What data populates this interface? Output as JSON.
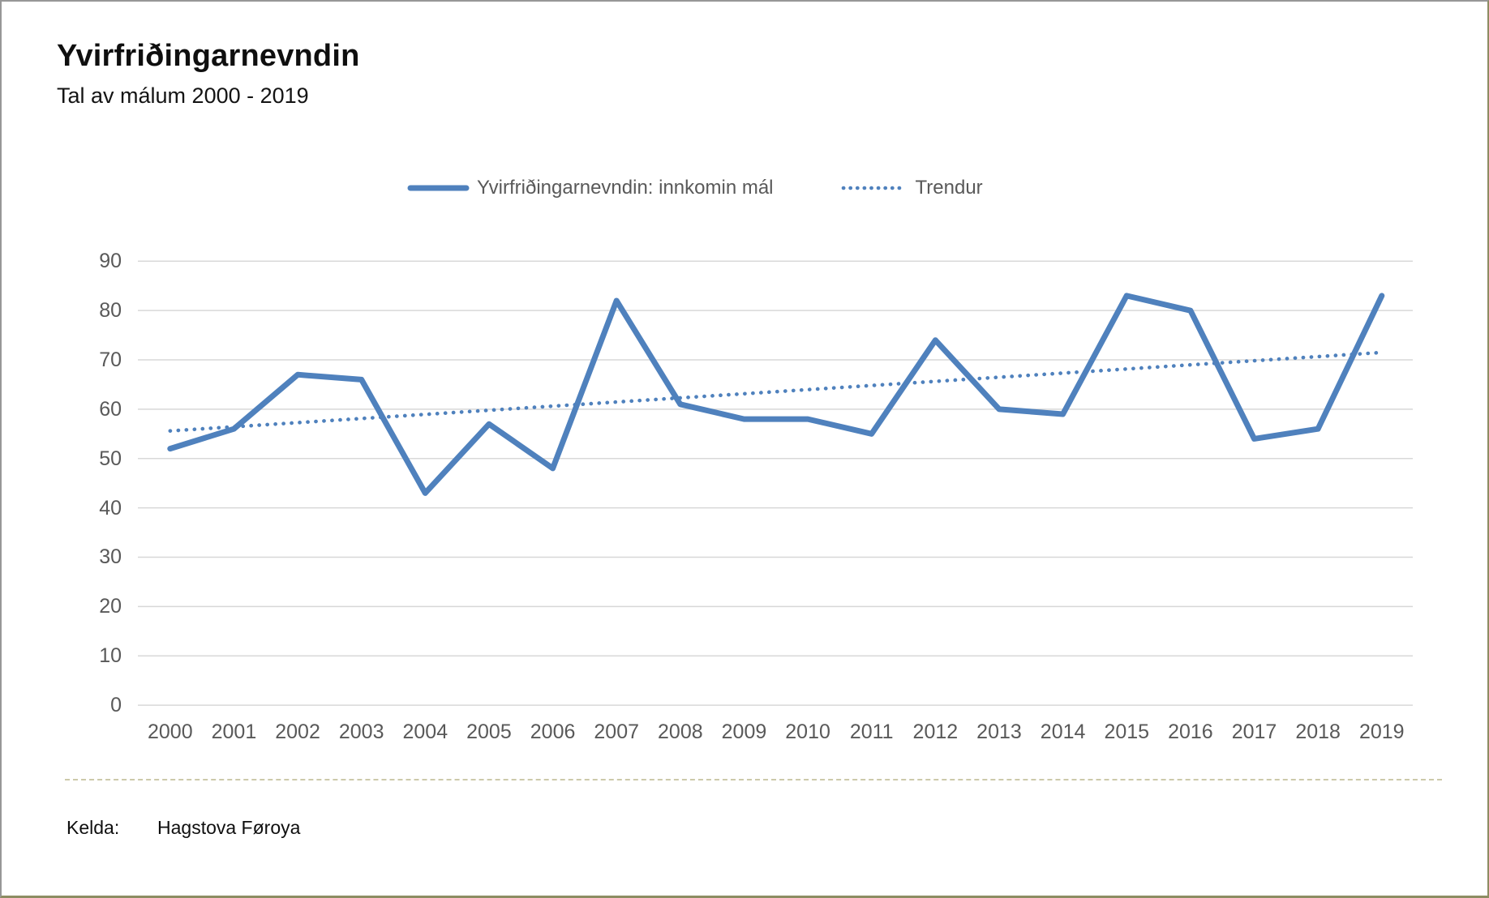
{
  "header": {
    "title": "Yvirfriðingarnevndin",
    "subtitle": "Tal av málum 2000 - 2019"
  },
  "legend": {
    "series_label": "Yvirfriðingarnevndin: innkomin mál",
    "trend_label": "Trendur"
  },
  "footer": {
    "source_label": "Kelda:",
    "source_value": "Hagstova Føroya"
  },
  "colors": {
    "series_line": "#4f81bd",
    "trend_line": "#4f81bd",
    "gridline": "#d8d8d8",
    "axis_text": "#595959",
    "separator": "#ccc9aa"
  },
  "chart_data": {
    "type": "line",
    "title": "Yvirfriðingarnevndin",
    "subtitle": "Tal av málum 2000 - 2019",
    "categories": [
      2000,
      2001,
      2002,
      2003,
      2004,
      2005,
      2006,
      2007,
      2008,
      2009,
      2010,
      2011,
      2012,
      2013,
      2014,
      2015,
      2016,
      2017,
      2018,
      2019
    ],
    "series": [
      {
        "name": "Yvirfriðingarnevndin: innkomin mál",
        "style": "solid",
        "values": [
          52,
          56,
          67,
          66,
          43,
          57,
          48,
          82,
          61,
          58,
          58,
          55,
          74,
          60,
          59,
          83,
          80,
          54,
          56,
          83
        ]
      },
      {
        "name": "Trendur",
        "style": "dotted",
        "is_trend": true,
        "start_value": 55.6,
        "end_value": 71.5
      }
    ],
    "xlabel": "",
    "ylabel": "",
    "ylim": [
      0,
      90
    ],
    "ytick_step": 10,
    "grid": true,
    "legend_position": "top-center"
  }
}
